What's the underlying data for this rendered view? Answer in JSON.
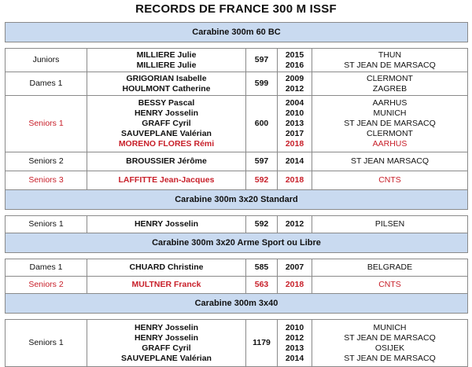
{
  "title": "RECORDS DE FRANCE 300 M ISSF",
  "colors": {
    "section_bg": "#c9daf0",
    "highlight": "#c8202a",
    "border": "#8a8a8a"
  },
  "sections": [
    {
      "name": "Carabine 300m 60 BC",
      "rows": [
        {
          "category": "Juniors",
          "names": [
            "MILLIERE Julie",
            "MILLIERE Julie"
          ],
          "score": "597",
          "years": [
            "2015",
            "2016"
          ],
          "places": [
            "THUN",
            "ST JEAN DE MARSACQ"
          ]
        },
        {
          "category": "Dames 1",
          "names": [
            "GRIGORIAN Isabelle",
            "HOULMONT Catherine"
          ],
          "score": "599",
          "years": [
            "2009",
            "2012"
          ],
          "places": [
            "CLERMONT",
            "ZAGREB"
          ]
        },
        {
          "category": "Seniors 1",
          "names": [
            "BESSY Pascal",
            "HENRY Josselin",
            "GRAFF Cyril",
            "SAUVEPLANE Valérian",
            "MORENO FLORES Rémi"
          ],
          "score": "600",
          "years": [
            "2004",
            "2010",
            "2013",
            "2017",
            "2018"
          ],
          "places": [
            "AARHUS",
            "MUNICH",
            "ST JEAN DE MARSACQ",
            "CLERMONT",
            "AARHUS"
          ]
        },
        {
          "category": "Seniors 2",
          "names": [
            "BROUSSIER Jérôme"
          ],
          "score": "597",
          "years": [
            "2014"
          ],
          "places": [
            "ST JEAN MARSACQ"
          ]
        },
        {
          "category": "Seniors 3",
          "names": [
            "LAFFITTE Jean-Jacques"
          ],
          "score": "592",
          "years": [
            "2018"
          ],
          "places": [
            "CNTS"
          ]
        }
      ]
    },
    {
      "name": "Carabine 300m 3x20 Standard",
      "rows": [
        {
          "category": "Seniors 1",
          "names": [
            "HENRY Josselin"
          ],
          "score": "592",
          "years": [
            "2012"
          ],
          "places": [
            "PILSEN"
          ]
        }
      ]
    },
    {
      "name": "Carabine 300m 3x20 Arme Sport ou Libre",
      "rows": [
        {
          "category": "Dames 1",
          "names": [
            "CHUARD Christine"
          ],
          "score": "585",
          "years": [
            "2007"
          ],
          "places": [
            "BELGRADE"
          ]
        },
        {
          "category": "Seniors 2",
          "names": [
            "MULTNER Franck"
          ],
          "score": "563",
          "years": [
            "2018"
          ],
          "places": [
            "CNTS"
          ]
        }
      ]
    },
    {
      "name": "Carabine 300m 3x40",
      "rows": [
        {
          "category": "Seniors 1",
          "names": [
            "HENRY Josselin",
            "HENRY Josselin",
            "GRAFF Cyril",
            "SAUVEPLANE Valérian"
          ],
          "score": "1179",
          "years": [
            "2010",
            "2012",
            "2013",
            "2014"
          ],
          "places": [
            "MUNICH",
            "ST JEAN DE MARSACQ",
            "OSIJEK",
            "ST JEAN DE MARSACQ"
          ]
        }
      ]
    }
  ]
}
